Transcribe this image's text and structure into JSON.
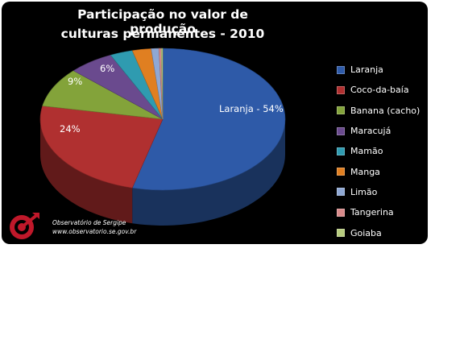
{
  "chart_data": {
    "type": "pie",
    "title_line1": "Participação no valor de produção",
    "title_line2": "culturas permanentes - 2010",
    "series": [
      {
        "name": "Laranja",
        "value": 54,
        "color": "#2e5aa8"
      },
      {
        "name": "Coco-da-baía",
        "value": 24,
        "color": "#b03030"
      },
      {
        "name": "Banana (cacho)",
        "value": 9,
        "color": "#83a33a"
      },
      {
        "name": "Maracujá",
        "value": 6,
        "color": "#6a4a8e"
      },
      {
        "name": "Mamão",
        "value": 3,
        "color": "#2f9bb0"
      },
      {
        "name": "Manga",
        "value": 2.5,
        "color": "#e07f21"
      },
      {
        "name": "Limão",
        "value": 1,
        "color": "#8fa8d4"
      },
      {
        "name": "Tangerina",
        "value": 0.3,
        "color": "#d98b8b"
      },
      {
        "name": "Goiaba",
        "value": 0.2,
        "color": "#b7cc7e"
      }
    ],
    "data_labels": [
      "Laranja - 54%",
      "24%",
      "9%",
      "6%"
    ],
    "legend_position": "right",
    "style": "3d-pie"
  },
  "footer": {
    "org": "Observatório de Sergipe",
    "url": "www.observatorio.se.gov.br"
  },
  "colors": {
    "background": "#000000",
    "logo_red": "#c0182a"
  }
}
